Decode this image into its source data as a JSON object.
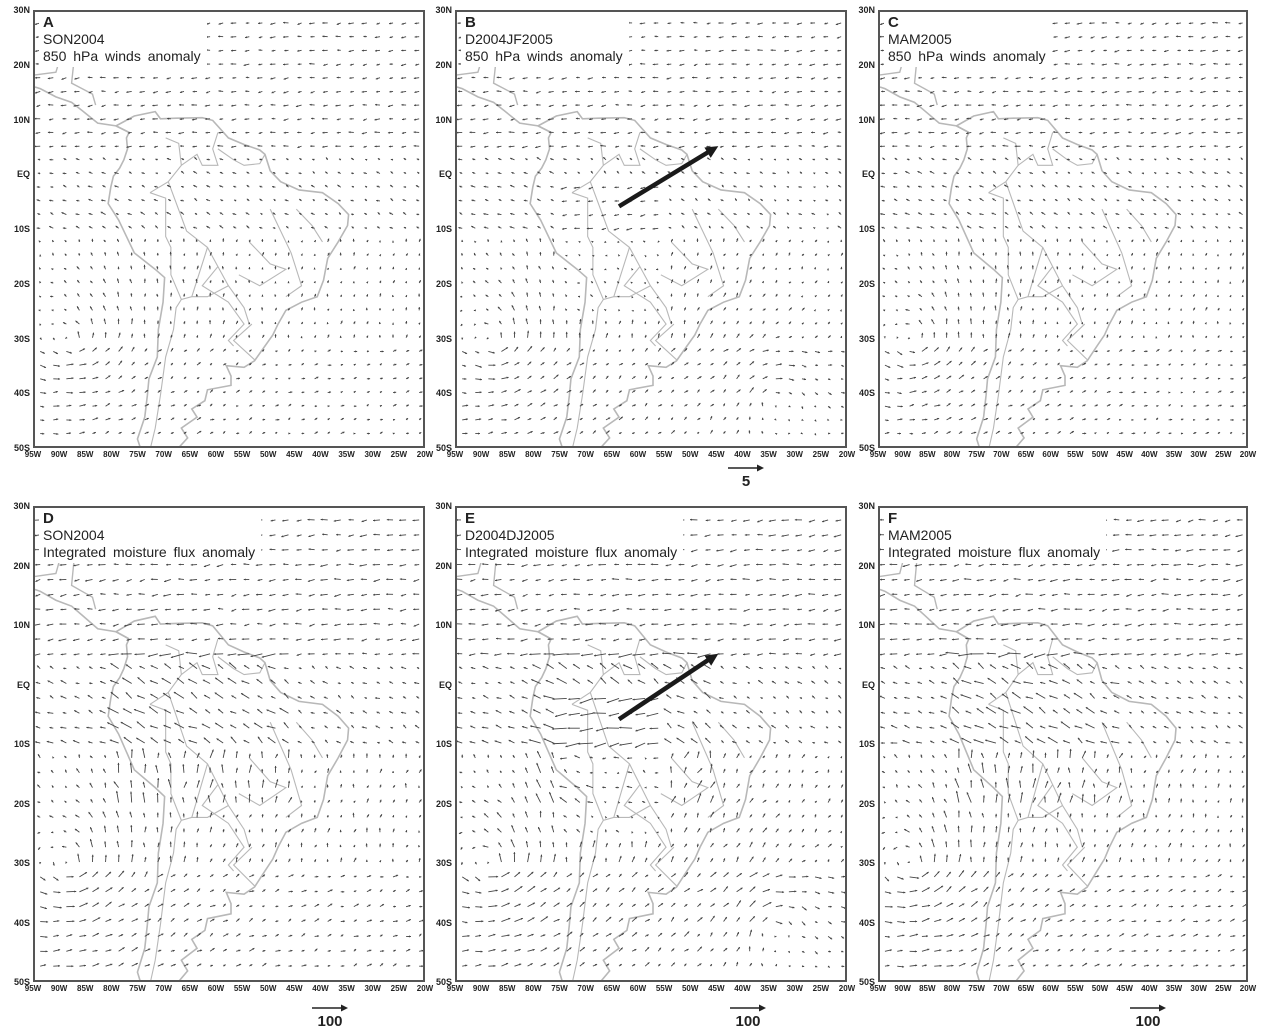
{
  "y_ticks": [
    "30N",
    "20N",
    "10N",
    "EQ",
    "10S",
    "20S",
    "30S",
    "40S",
    "50S"
  ],
  "x_ticks": [
    "95W",
    "90W",
    "85W",
    "80W",
    "75W",
    "70W",
    "65W",
    "60W",
    "55W",
    "50W",
    "45W",
    "40W",
    "35W",
    "30W",
    "25W",
    "20W"
  ],
  "panels": [
    {
      "letter": "A",
      "period": "SON2004",
      "title": "850  hPa  winds  anomaly",
      "mode": "wind",
      "bigArrow": false
    },
    {
      "letter": "B",
      "period": "D2004JF2005",
      "title": "850  hPa  winds  anomaly",
      "mode": "wind",
      "bigArrow": true
    },
    {
      "letter": "C",
      "period": "MAM2005",
      "title": "850  hPa  winds  anomaly",
      "mode": "wind",
      "bigArrow": false
    },
    {
      "letter": "D",
      "period": "SON2004",
      "title": "Integrated  moisture  flux  anomaly",
      "mode": "flux",
      "bigArrow": false
    },
    {
      "letter": "E",
      "period": "D2004DJ2005",
      "title": "Integrated  moisture  flux  anomaly",
      "mode": "flux",
      "bigArrow": true
    },
    {
      "letter": "F",
      "period": "MAM2005",
      "title": "Integrated  moisture  flux  anomaly",
      "mode": "flux",
      "bigArrow": false
    }
  ],
  "scales": {
    "wind": "5",
    "flux_d": "100",
    "flux_e": "100",
    "flux_f": "100"
  },
  "colors": {
    "arrow": "#444444",
    "coast": "#b8b8b8",
    "big_arrow": "#1a1a1a",
    "frame": "#555555"
  }
}
